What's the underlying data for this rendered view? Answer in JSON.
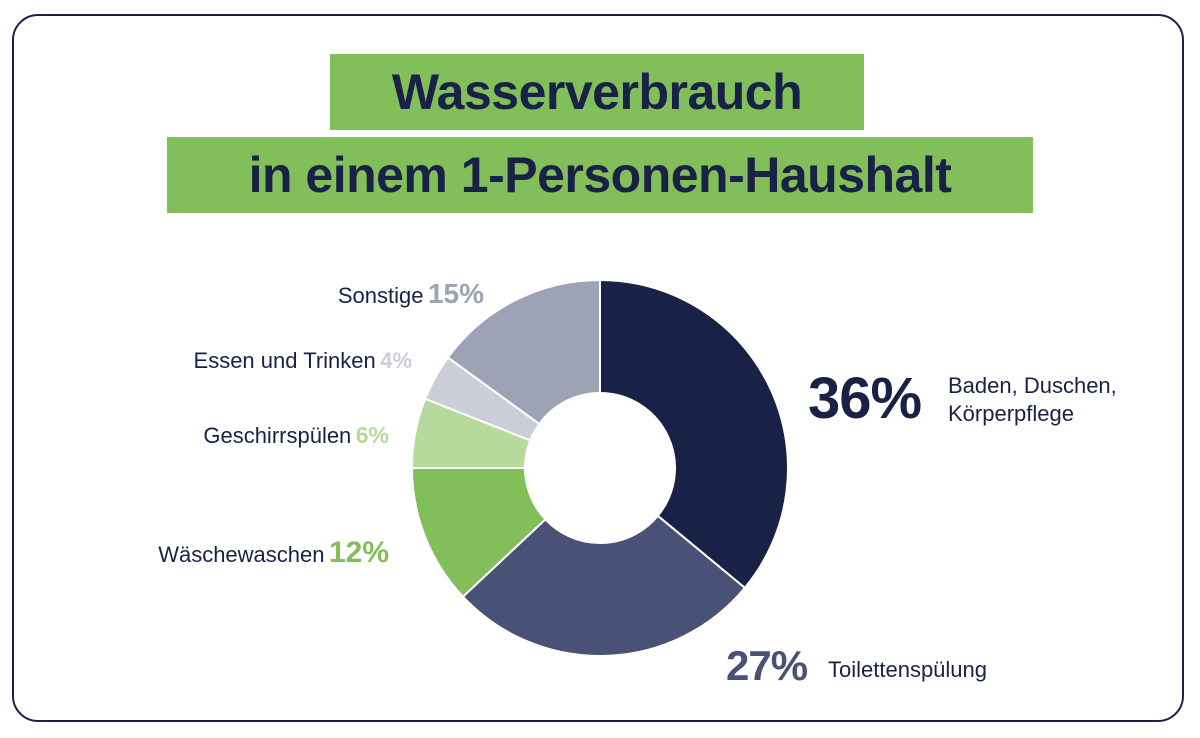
{
  "title": {
    "line1": "Wasserverbrauch",
    "line2": "in einem 1-Personen-Haushalt"
  },
  "colors": {
    "navy": "#1a2147",
    "slate": "#4a5177",
    "green": "#82be59",
    "light_green": "#b6d99c",
    "light_gray": "#cbcdd9",
    "gray": "#9ea2b5"
  },
  "chart_data": {
    "type": "pie",
    "variant": "donut",
    "title": "Wasserverbrauch in einem 1-Personen-Haushalt",
    "slices": [
      {
        "label": "Baden, Duschen, Körperpflege",
        "label_line1": "Baden, Duschen,",
        "label_line2": "Körperpflege",
        "value": 36,
        "display": "36%",
        "color": "#1a2147"
      },
      {
        "label": "Toilettenspülung",
        "value": 27,
        "display": "27%",
        "color": "#4a5177"
      },
      {
        "label": "Wäschewaschen",
        "value": 12,
        "display": "12%",
        "color": "#82be59"
      },
      {
        "label": "Geschirrspülen",
        "value": 6,
        "display": "6%",
        "color": "#b6d99c"
      },
      {
        "label": "Essen und Trinken",
        "value": 4,
        "display": "4%",
        "color": "#cbcdd9"
      },
      {
        "label": "Sonstige",
        "value": 15,
        "display": "15%",
        "color": "#9ea2b5"
      }
    ]
  }
}
